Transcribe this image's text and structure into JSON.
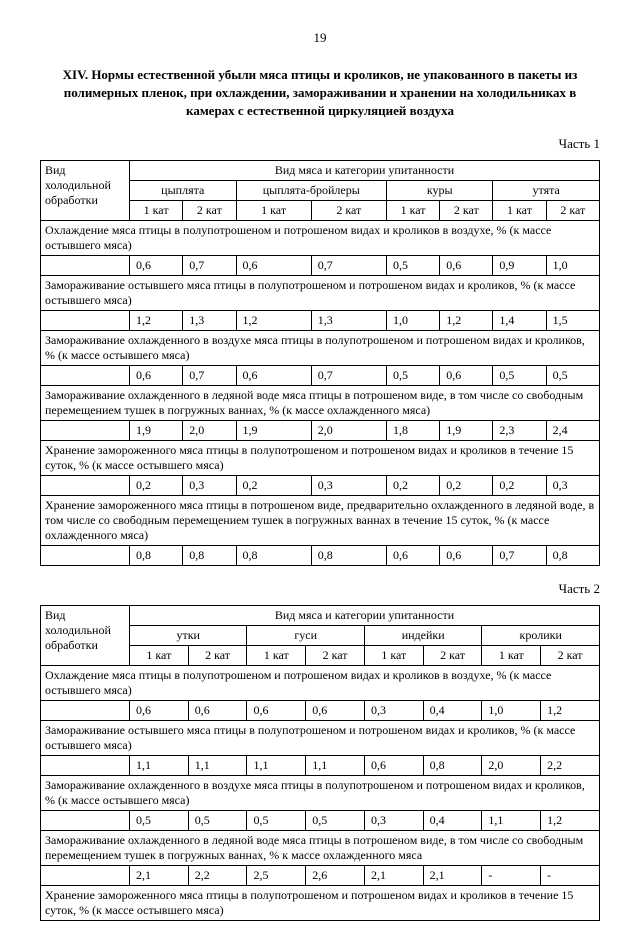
{
  "pageNumber": "19",
  "title": "XIV. Нормы естественной убыли мяса птицы и кроликов, не упакованного в пакеты из полимерных пленок, при охлаждении, замораживании и хранении на холодильниках в камерах с естественной циркуляцией воздуха",
  "part1": {
    "label": "Часть 1",
    "headers": {
      "col1": "Вид холодильной обработки",
      "superHeader": "Вид мяса и категории упитанности",
      "groups": [
        "цыплята",
        "цыплята-бройлеры",
        "куры",
        "утята"
      ],
      "sub": [
        "1 кат",
        "2 кат",
        "1 кат",
        "2 кат",
        "1 кат",
        "2 кат",
        "1 кат",
        "2 кат"
      ]
    },
    "sections": [
      {
        "desc": "Охлаждение мяса птицы в полупотрошеном и потрошеном видах и кроликов в воздухе, % (к массе остывшего мяса)",
        "vals": [
          "0,6",
          "0,7",
          "0,6",
          "0,7",
          "0,5",
          "0,6",
          "0,9",
          "1,0"
        ]
      },
      {
        "desc": "Замораживание остывшего мяса птицы в полупотрошеном и потрошеном видах и кроликов, % (к массе остывшего мяса)",
        "vals": [
          "1,2",
          "1,3",
          "1,2",
          "1,3",
          "1,0",
          "1,2",
          "1,4",
          "1,5"
        ]
      },
      {
        "desc": "Замораживание охлажденного в воздухе мяса птицы в полупотрошеном и потрошеном видах и кроликов, % (к массе остывшего мяса)",
        "vals": [
          "0,6",
          "0,7",
          "0,6",
          "0,7",
          "0,5",
          "0,6",
          "0,5",
          "0,5"
        ]
      },
      {
        "desc": "Замораживание охлажденного в ледяной воде мяса птицы в потрошеном виде, в том числе со свободным перемещением тушек в погружных ваннах, % (к массе охлажденного мяса)",
        "vals": [
          "1,9",
          "2,0",
          "1,9",
          "2,0",
          "1,8",
          "1,9",
          "2,3",
          "2,4"
        ]
      },
      {
        "desc": "Хранение замороженного мяса птицы в полупотрошеном и потрошеном видах и  кроликов в течение 15 суток, % (к массе остывшего мяса)",
        "vals": [
          "0,2",
          "0,3",
          "0,2",
          "0,3",
          "0,2",
          "0,2",
          "0,2",
          "0,3"
        ]
      },
      {
        "desc": "Хранение замороженного мяса птицы в потрошеном виде, предварительно  охлажденного в ледяной воде, в том числе со свободным перемещением тушек в погружных ваннах в течение 15 суток, % (к массе охлажденного мяса)",
        "vals": [
          "0,8",
          "0,8",
          "0,8",
          "0,8",
          "0,6",
          "0,6",
          "0,7",
          "0,8"
        ]
      }
    ]
  },
  "part2": {
    "label": "Часть 2",
    "headers": {
      "col1": "Вид холодильной обработки",
      "superHeader": "Вид мяса и категории упитанности",
      "groups": [
        "утки",
        "гуси",
        "индейки",
        "кролики"
      ],
      "sub": [
        "1 кат",
        "2 кат",
        "1 кат",
        "2 кат",
        "1 кат",
        "2 кат",
        "1 кат",
        "2 кат"
      ]
    },
    "sections": [
      {
        "desc": "Охлаждение мяса птицы в полупотрошеном и потрошеном видах и кроликов в воздухе, % (к массе остывшего мяса)",
        "vals": [
          "0,6",
          "0,6",
          "0,6",
          "0,6",
          "0,3",
          "0,4",
          "1,0",
          "1,2"
        ]
      },
      {
        "desc": "Замораживание остывшего мяса птицы в полупотрошеном и потрошеном видах и кроликов, % (к массе остывшего мяса)",
        "vals": [
          "1,1",
          "1,1",
          "1,1",
          "1,1",
          "0,6",
          "0,8",
          "2,0",
          "2,2"
        ]
      },
      {
        "desc": "Замораживание охлажденного в воздухе мяса птицы в полупотрошеном и потрошеном видах и кроликов, % (к массе остывшего мяса)",
        "vals": [
          "0,5",
          "0,5",
          "0,5",
          "0,5",
          "0,3",
          "0,4",
          "1,1",
          "1,2"
        ]
      },
      {
        "desc": "Замораживание охлажденного в ледяной воде мяса птицы в потрошеном виде, в том числе со свободным перемещением тушек в погружных ваннах, % к массе охлажденного мяса",
        "vals": [
          "2,1",
          "2,2",
          "2,5",
          "2,6",
          "2,1",
          "2,1",
          "-",
          "-"
        ]
      },
      {
        "desc": "Хранение замороженного мяса птицы в полупотрошеном и потрошеном видах и  кроликов в течение 15 суток, % (к массе остывшего мяса)",
        "vals": []
      }
    ]
  }
}
